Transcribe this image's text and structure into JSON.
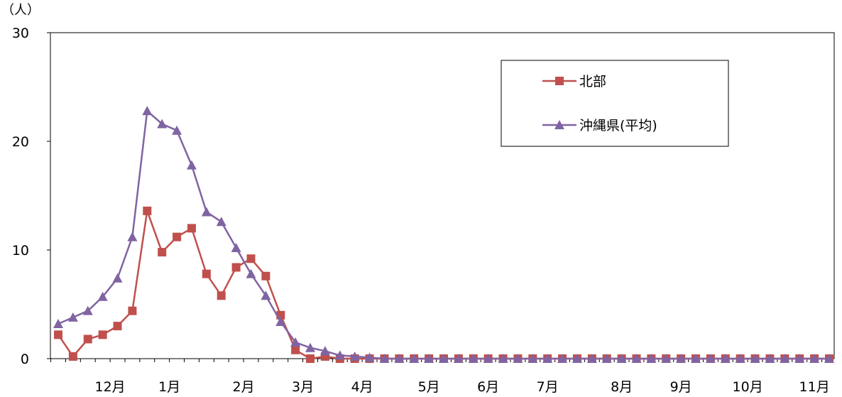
{
  "chart_data": {
    "type": "line",
    "y_unit": "（人）",
    "ylim": [
      0,
      30
    ],
    "yticks": [
      0,
      10,
      20,
      30
    ],
    "month_labels": [
      {
        "label": "12月",
        "week": 3.5
      },
      {
        "label": "1月",
        "week": 7.5
      },
      {
        "label": "2月",
        "week": 12.5
      },
      {
        "label": "3月",
        "week": 16.5
      },
      {
        "label": "4月",
        "week": 20.5
      },
      {
        "label": "5月",
        "week": 25
      },
      {
        "label": "6月",
        "week": 29
      },
      {
        "label": "7月",
        "week": 33
      },
      {
        "label": "8月",
        "week": 38
      },
      {
        "label": "9月",
        "week": 42
      },
      {
        "label": "10月",
        "week": 46.5
      },
      {
        "label": "11月",
        "week": 51
      }
    ],
    "week_count": 53,
    "grid": false,
    "legend_position": "top-right",
    "series": [
      {
        "name": "北部",
        "color": "#C0504D",
        "marker": "square",
        "values": [
          2.2,
          0.2,
          1.8,
          2.2,
          3.0,
          4.4,
          13.6,
          9.8,
          11.2,
          12.0,
          7.8,
          5.8,
          8.4,
          9.2,
          7.6,
          4.0,
          0.8,
          0.0,
          0.2,
          0.0,
          0.0,
          0.0,
          0.0,
          0.0,
          0.0,
          0.0,
          0.0,
          0.0,
          0.0,
          0.0,
          0.0,
          0.0,
          0.0,
          0.0,
          0.0,
          0.0,
          0.0,
          0.0,
          0.0,
          0.0,
          0.0,
          0.0,
          0.0,
          0.0,
          0.0,
          0.0,
          0.0,
          0.0,
          0.0,
          0.0,
          0.0,
          0.0,
          0.0
        ]
      },
      {
        "name": "沖縄県(平均)",
        "color": "#8064A2",
        "marker": "triangle",
        "values": [
          3.2,
          3.8,
          4.4,
          5.7,
          7.4,
          11.2,
          22.8,
          21.6,
          21.0,
          17.8,
          13.5,
          12.6,
          10.2,
          7.8,
          5.8,
          3.4,
          1.5,
          1.0,
          0.7,
          0.3,
          0.2,
          0.1,
          0.0,
          0.0,
          0.0,
          0.0,
          0.0,
          0.0,
          0.0,
          0.0,
          0.0,
          0.0,
          0.0,
          0.0,
          0.0,
          0.0,
          0.0,
          0.0,
          0.0,
          0.0,
          0.0,
          0.0,
          0.0,
          0.0,
          0.0,
          0.0,
          0.0,
          0.0,
          0.0,
          0.0,
          0.0,
          0.0,
          0.0
        ]
      }
    ]
  }
}
